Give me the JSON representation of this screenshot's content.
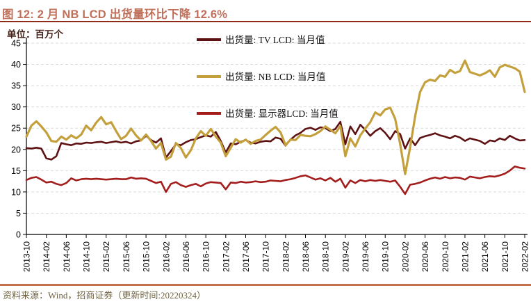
{
  "title": {
    "label": "图 12: 2 月 NB LCD 出货量环比下降 12.6%"
  },
  "footer": {
    "source_label": "资料来源：Wind，招商证券（更新时间:20220324）"
  },
  "colors": {
    "title_text": "#C0705A",
    "title_rule": "#8F2B16",
    "bottom_rule": "#C2734E",
    "unit_label_text": "#44231A",
    "footer_text": "#6F6140",
    "axis": "#000000",
    "gridline": "#D9D9D9",
    "tv_lcd_line": "#5E1113",
    "nb_lcd_line": "#C3A03C",
    "monitor_lcd_line": "#A31D1D"
  },
  "chart_data": {
    "type": "line",
    "title": "图 12: 2 月 NB LCD 出货量环比下降 12.6%",
    "unit_label": "单位：百万个",
    "ylabel": "",
    "xlabel": "",
    "ylim": [
      0,
      45
    ],
    "y_ticks": [
      0,
      5,
      10,
      15,
      20,
      25,
      30,
      35,
      40,
      45
    ],
    "grid": "horizontal-dashed",
    "legend_position": "top-center-vertical",
    "x_start": "2013-10",
    "x_end": "2022-02",
    "x_interval": "monthly",
    "x_tick_labels": [
      "2013-10",
      "2014-02",
      "2014-06",
      "2014-10",
      "2015-02",
      "2015-06",
      "2015-10",
      "2016-02",
      "2016-06",
      "2016-10",
      "2017-02",
      "2017-06",
      "2017-10",
      "2018-02",
      "2018-06",
      "2018-10",
      "2019-02",
      "2019-06",
      "2019-10",
      "2020-02",
      "2020-06",
      "2020-10",
      "2021-02",
      "2021-06",
      "2021-10",
      "2022-02"
    ],
    "x_tick_step_months": 4,
    "series": [
      {
        "name": "出货量: TV LCD: 当月值",
        "color": "#5E1113",
        "width": 2.6,
        "values": [
          20.3,
          20.2,
          20.4,
          20.2,
          17.9,
          17.6,
          18.4,
          21.5,
          21.2,
          21.0,
          21.4,
          21.3,
          21.6,
          21.5,
          21.7,
          21.8,
          21.5,
          21.7,
          21.9,
          21.6,
          21.8,
          21.4,
          21.9,
          22.1,
          23.2,
          22.2,
          21.6,
          22.6,
          18.1,
          19.6,
          21.2,
          21.0,
          21.7,
          22.2,
          22.4,
          22.9,
          23.3,
          23.0,
          24.1,
          22.0,
          19.3,
          21.4,
          21.2,
          21.8,
          22.2,
          21.6,
          21.4,
          21.8,
          22.0,
          21.9,
          22.8,
          22.5,
          20.9,
          22.3,
          23.3,
          23.9,
          24.8,
          25.1,
          24.6,
          25.2,
          25.0,
          24.3,
          24.8,
          26.5,
          21.2,
          25.4,
          23.6,
          25.8,
          24.6,
          23.2,
          24.3,
          25.0,
          23.9,
          22.4,
          24.3,
          23.6,
          20.2,
          22.6,
          21.0,
          22.7,
          23.1,
          23.4,
          23.8,
          23.3,
          23.0,
          22.6,
          23.2,
          22.8,
          22.0,
          22.6,
          22.3,
          22.0,
          21.3,
          22.1,
          21.9,
          22.6,
          22.2,
          23.2,
          22.6,
          22.1,
          22.2
        ]
      },
      {
        "name": "出货量: NB LCD: 当月值",
        "color": "#C3A03C",
        "width": 3.2,
        "values": [
          23.0,
          25.6,
          26.6,
          25.4,
          24.0,
          22.0,
          21.8,
          23.0,
          22.3,
          23.3,
          22.6,
          23.5,
          25.6,
          24.5,
          26.3,
          27.6,
          25.9,
          26.4,
          24.3,
          22.4,
          23.2,
          24.9,
          23.3,
          22.1,
          23.5,
          22.0,
          20.2,
          21.5,
          17.6,
          18.3,
          21.5,
          20.3,
          18.1,
          19.8,
          22.6,
          24.3,
          23.2,
          24.8,
          23.0,
          21.6,
          18.4,
          20.4,
          22.4,
          21.6,
          22.3,
          21.3,
          22.0,
          22.3,
          23.4,
          24.4,
          25.3,
          24.0,
          21.0,
          22.3,
          22.2,
          23.4,
          23.2,
          23.1,
          23.6,
          24.3,
          25.4,
          24.6,
          23.8,
          25.5,
          18.4,
          22.6,
          20.7,
          23.3,
          24.9,
          26.4,
          28.7,
          28.0,
          29.4,
          29.8,
          27.2,
          21.2,
          14.2,
          20.5,
          27.8,
          33.5,
          35.8,
          36.4,
          36.1,
          37.4,
          37.1,
          38.7,
          38.0,
          38.4,
          40.9,
          38.2,
          37.8,
          37.4,
          37.9,
          38.6,
          37.1,
          39.3,
          39.9,
          39.5,
          39.1,
          38.3,
          33.5
        ]
      },
      {
        "name": "出货量: 显示器LCD: 当月值",
        "color": "#A31D1D",
        "width": 2.6,
        "values": [
          12.8,
          13.3,
          13.5,
          12.9,
          12.2,
          12.4,
          11.9,
          11.6,
          12.1,
          13.2,
          12.7,
          13.0,
          13.1,
          13.0,
          13.1,
          13.0,
          12.9,
          13.0,
          13.1,
          13.0,
          13.0,
          13.4,
          13.1,
          13.2,
          13.1,
          12.6,
          12.1,
          12.4,
          10.0,
          11.9,
          12.3,
          11.6,
          11.2,
          11.6,
          11.9,
          11.3,
          12.0,
          12.3,
          12.2,
          12.1,
          10.6,
          12.2,
          12.1,
          12.4,
          12.2,
          12.3,
          12.5,
          12.3,
          12.4,
          12.7,
          12.6,
          12.5,
          12.8,
          13.0,
          13.3,
          13.7,
          13.9,
          13.4,
          12.9,
          13.2,
          12.7,
          13.3,
          12.4,
          13.1,
          11.0,
          12.7,
          12.1,
          12.8,
          12.5,
          12.8,
          12.6,
          12.8,
          12.6,
          12.4,
          12.7,
          11.2,
          9.5,
          11.7,
          11.9,
          12.2,
          12.7,
          13.1,
          13.4,
          13.1,
          13.5,
          13.2,
          13.4,
          13.3,
          12.9,
          13.6,
          13.4,
          13.2,
          13.5,
          13.7,
          13.6,
          13.9,
          14.3,
          15.0,
          16.0,
          15.7,
          15.5
        ]
      }
    ]
  }
}
